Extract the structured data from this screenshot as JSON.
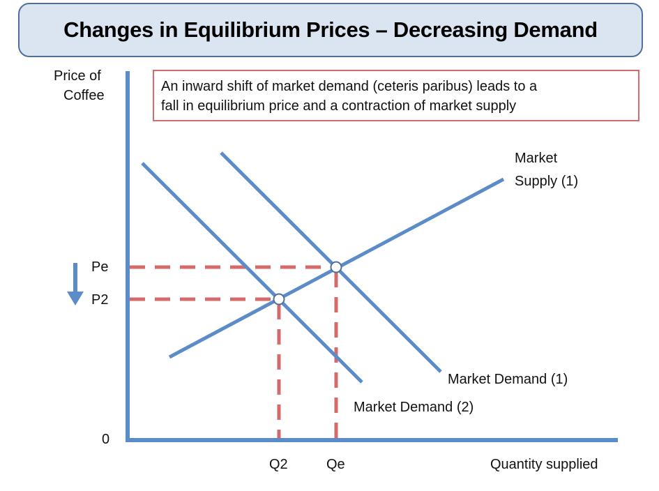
{
  "title": "Changes in Equilibrium Prices – Decreasing Demand",
  "note": {
    "line1": "An inward shift of market demand (ceteris paribus) leads to a",
    "line2": "fall in equilibrium price and a contraction of market supply"
  },
  "axes": {
    "y_label_line1": "Price of",
    "y_label_line2": "Coffee",
    "x_label": "Quantity supplied",
    "origin": "0",
    "price_ticks": {
      "pe": "Pe",
      "p2": "P2"
    },
    "quantity_ticks": {
      "q2": "Q2",
      "qe": "Qe"
    }
  },
  "curves": {
    "supply_line1": "Market",
    "supply_line2": "Supply (1)",
    "demand1": "Market Demand (1)",
    "demand2": "Market Demand (2)"
  },
  "colors": {
    "curve": "#5b8cc7",
    "dashed": "#d46a6a",
    "title_bg": "#dbe5f1",
    "title_border": "#4f6f99"
  },
  "icons": {
    "price_change": "down-arrow-icon"
  }
}
